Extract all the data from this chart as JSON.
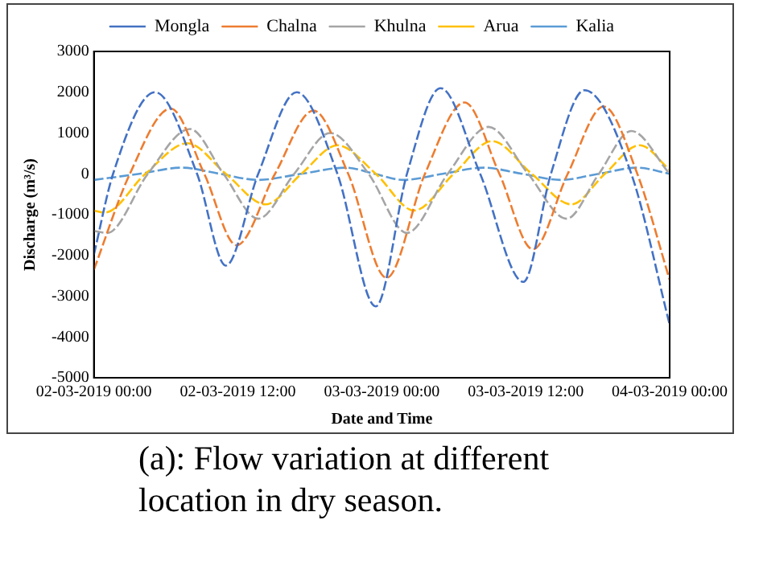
{
  "chart_data": {
    "type": "line",
    "xlabel": "Date and Time",
    "ylabel": "Discharge (m³/s)",
    "annotations": [
      "(a): Flow variation at different location in dry season."
    ],
    "xlim": [
      "2019-03-02T00:00",
      "2019-03-04T00:00"
    ],
    "xticks": [
      {
        "value": "2019-03-02T00:00",
        "label": "02-03-2019 00:00"
      },
      {
        "value": "2019-03-02T12:00",
        "label": "02-03-2019 12:00"
      },
      {
        "value": "2019-03-03T00:00",
        "label": "03-03-2019 00:00"
      },
      {
        "value": "2019-03-03T12:00",
        "label": "03-03-2019 12:00"
      },
      {
        "value": "2019-03-04T00:00",
        "label": "04-03-2019 00:00"
      }
    ],
    "ylim": [
      -5000,
      3000
    ],
    "yticks": [
      -5000,
      -4000,
      -3000,
      -2000,
      -1000,
      0,
      1000,
      2000,
      3000
    ],
    "grid": false,
    "legend": "top",
    "marker": "none",
    "line_style": "dashed",
    "series": [
      {
        "name": "Mongla",
        "color": "#4472c4",
        "x": [
          "2019-03-02T00:00",
          "2019-03-02T01:36",
          "2019-03-02T05:06",
          "2019-03-02T08:36",
          "2019-03-02T11:00",
          "2019-03-02T13:42",
          "2019-03-02T16:54",
          "2019-03-02T20:18",
          "2019-03-02T23:30",
          "2019-03-03T02:06",
          "2019-03-03T04:54",
          "2019-03-03T08:12",
          "2019-03-03T11:48",
          "2019-03-03T14:06",
          "2019-03-03T16:54",
          "2019-03-03T20:48",
          "2019-03-04T00:00"
        ],
        "values": [
          -1980,
          0,
          2000,
          0,
          -2250,
          0,
          2000,
          0,
          -3250,
          0,
          2100,
          0,
          -2650,
          0,
          2050,
          0,
          -3700
        ]
      },
      {
        "name": "Chalna",
        "color": "#ed7d31",
        "x": [
          "2019-03-02T00:00",
          "2019-03-02T03:00",
          "2019-03-02T06:24",
          "2019-03-02T09:12",
          "2019-03-02T11:54",
          "2019-03-02T15:06",
          "2019-03-02T18:18",
          "2019-03-02T21:12",
          "2019-03-03T00:24",
          "2019-03-03T03:36",
          "2019-03-03T06:54",
          "2019-03-03T09:48",
          "2019-03-03T12:36",
          "2019-03-03T15:30",
          "2019-03-03T18:30",
          "2019-03-03T21:18",
          "2019-03-04T00:00"
        ],
        "values": [
          -2350,
          0,
          1600,
          0,
          -1750,
          0,
          1550,
          0,
          -2550,
          0,
          1750,
          0,
          -1850,
          0,
          1650,
          0,
          -2600
        ]
      },
      {
        "name": "Khulna",
        "color": "#a5a5a5",
        "x": [
          "2019-03-02T00:00",
          "2019-03-02T01:06",
          "2019-03-02T04:30",
          "2019-03-02T08:00",
          "2019-03-02T10:48",
          "2019-03-02T13:42",
          "2019-03-02T16:42",
          "2019-03-02T19:42",
          "2019-03-02T22:54",
          "2019-03-03T02:06",
          "2019-03-03T05:30",
          "2019-03-03T08:54",
          "2019-03-03T12:12",
          "2019-03-03T15:24",
          "2019-03-03T18:06",
          "2019-03-03T20:48",
          "2019-03-04T00:00"
        ],
        "values": [
          -1400,
          -1450,
          0,
          1100,
          0,
          -1100,
          0,
          1000,
          0,
          -1450,
          0,
          1150,
          0,
          -1100,
          0,
          1050,
          0
        ]
      },
      {
        "name": "Arua",
        "color": "#ffc000",
        "x": [
          "2019-03-02T00:00",
          "2019-03-02T00:54",
          "2019-03-02T04:18",
          "2019-03-02T07:48",
          "2019-03-02T11:00",
          "2019-03-02T14:18",
          "2019-03-02T17:18",
          "2019-03-02T20:18",
          "2019-03-02T23:30",
          "2019-03-03T02:42",
          "2019-03-03T06:00",
          "2019-03-03T09:12",
          "2019-03-03T12:30",
          "2019-03-03T15:48",
          "2019-03-03T18:36",
          "2019-03-03T21:30",
          "2019-03-04T00:00"
        ],
        "values": [
          -900,
          -950,
          0,
          750,
          0,
          -750,
          0,
          700,
          0,
          -900,
          0,
          800,
          0,
          -750,
          0,
          700,
          100
        ]
      },
      {
        "name": "Kalia",
        "color": "#5b9bd5",
        "x": [
          "2019-03-02T00:00",
          "2019-03-02T03:48",
          "2019-03-02T07:18",
          "2019-03-02T10:30",
          "2019-03-02T13:42",
          "2019-03-02T17:18",
          "2019-03-02T21:00",
          "2019-03-02T23:24",
          "2019-03-03T01:48",
          "2019-03-03T05:06",
          "2019-03-03T08:30",
          "2019-03-03T11:42",
          "2019-03-03T14:54",
          "2019-03-03T18:06",
          "2019-03-03T21:18",
          "2019-03-04T00:00"
        ],
        "values": [
          -150,
          0,
          150,
          0,
          -150,
          0,
          150,
          0,
          -150,
          0,
          150,
          0,
          -150,
          0,
          150,
          0
        ]
      }
    ]
  }
}
